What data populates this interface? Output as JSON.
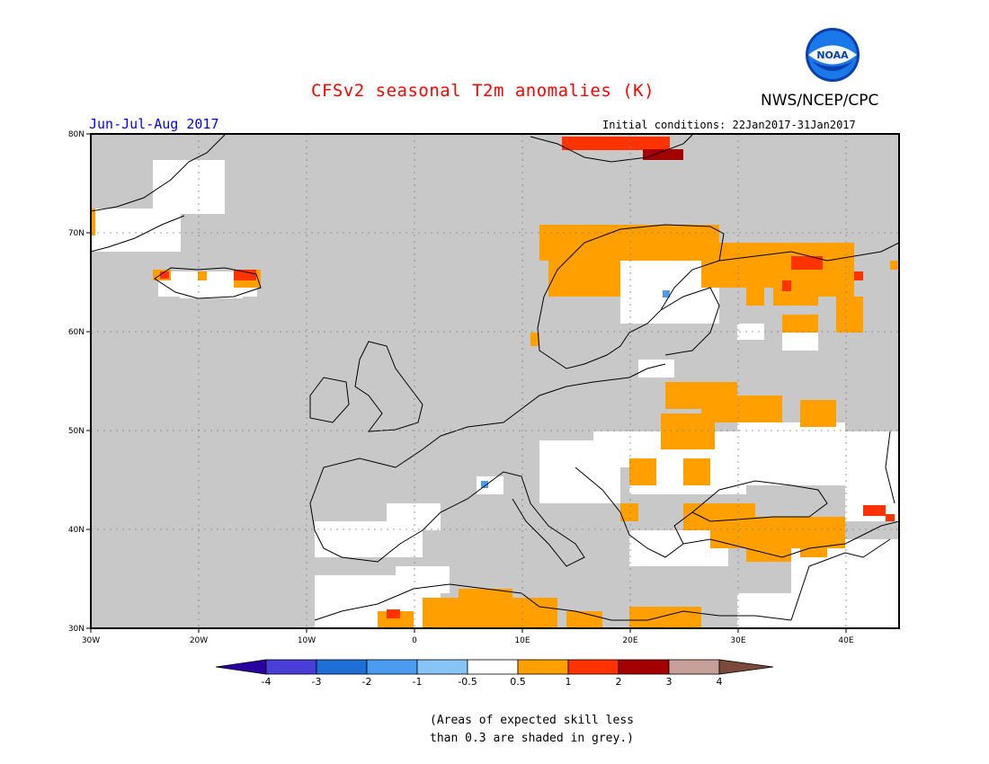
{
  "header": {
    "title": "CFSv2 seasonal T2m anomalies (K)",
    "agency": "NWS/NCEP/CPC",
    "period": "Jun-Jul-Aug 2017",
    "initial_conditions": "Initial conditions: 22Jan2017-31Jan2017",
    "logo_text": "NOAA"
  },
  "map": {
    "projection": "lat-lon",
    "lon_range": [
      -30,
      45
    ],
    "lat_range": [
      30,
      80
    ],
    "lat_labels": [
      "80N",
      "70N",
      "60N",
      "50N",
      "40N",
      "30N"
    ],
    "lon_labels": [
      "30W",
      "20W",
      "10W",
      "0",
      "10E",
      "20E",
      "30E",
      "40E"
    ],
    "ocean_color": "#c8c8c8",
    "gridlines": "dotted"
  },
  "legend": {
    "labels": [
      "-4",
      "-3",
      "-2",
      "-1",
      "-0.5",
      "0.5",
      "1",
      "2",
      "3",
      "4"
    ],
    "colors": [
      "#2a00a0",
      "#4a3ed8",
      "#1e6fd6",
      "#4b9cf0",
      "#89c4f6",
      "#ffffff",
      "#ffa000",
      "#ff3300",
      "#a50000",
      "#c8a09a",
      "#7b4a3a"
    ]
  },
  "note": {
    "line1": "(Areas of expected skill less",
    "line2": "than 0.3 are shaded in grey.)"
  }
}
